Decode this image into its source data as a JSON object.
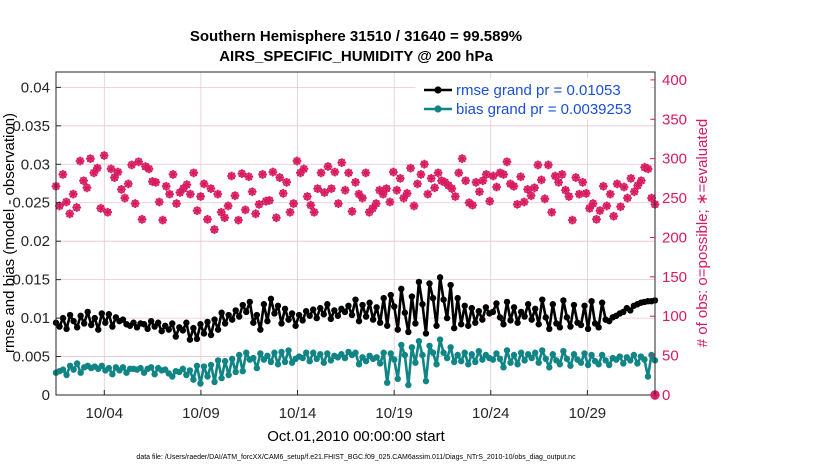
{
  "chart_data": {
    "type": "line",
    "title": "Southern Hemisphere 31510 / 31640 = 99.589%",
    "subtitle": "AIRS_SPECIFIC_HUMIDITY @ 200 hPa",
    "xlabel": "Oct.01,2010 00:00:00 start",
    "ylabel": "rmse and bias (model - observation)",
    "y2label": "# of obs: o=possible; ∗=evaluated",
    "x_start_day": 1.5,
    "x_end_day": 32.5,
    "xlim": [
      1.5,
      32.5
    ],
    "ylim": [
      0,
      0.042
    ],
    "y2lim": [
      0,
      410
    ],
    "x_tick_days": [
      4,
      9,
      14,
      19,
      24,
      29
    ],
    "x_tick_labels": [
      "10/04",
      "10/09",
      "10/14",
      "10/19",
      "10/24",
      "10/29"
    ],
    "y_ticks": [
      "0",
      "0.005",
      "0.01",
      "0.015",
      "0.02",
      "0.025",
      "0.03",
      "0.035",
      "0.04"
    ],
    "y2_ticks": [
      "0",
      "50",
      "100",
      "150",
      "200",
      "250",
      "300",
      "350",
      "400"
    ],
    "grid": true,
    "legend_position": "top-right",
    "series": [
      {
        "name": "rmse grand pr = 0.01053",
        "axis": "left",
        "color": "#000000",
        "values": [
          0.0094,
          0.0089,
          0.01,
          0.0086,
          0.0104,
          0.0096,
          0.0088,
          0.0103,
          0.0093,
          0.0108,
          0.0091,
          0.01,
          0.0085,
          0.0106,
          0.0094,
          0.0105,
          0.0089,
          0.0101,
          0.0096,
          0.0098,
          0.0092,
          0.009,
          0.0094,
          0.0088,
          0.0093,
          0.0092,
          0.0086,
          0.0096,
          0.0089,
          0.0094,
          0.0083,
          0.009,
          0.0085,
          0.0093,
          0.0076,
          0.0088,
          0.0084,
          0.0094,
          0.0072,
          0.0087,
          0.0073,
          0.0092,
          0.008,
          0.0095,
          0.0078,
          0.0098,
          0.0085,
          0.0107,
          0.0093,
          0.0104,
          0.0098,
          0.011,
          0.0102,
          0.0117,
          0.0108,
          0.0121,
          0.0094,
          0.0104,
          0.0085,
          0.0118,
          0.0096,
          0.0125,
          0.0106,
          0.0116,
          0.0093,
          0.0112,
          0.0098,
          0.0106,
          0.009,
          0.0104,
          0.0097,
          0.0109,
          0.0103,
          0.0111,
          0.01,
          0.0113,
          0.0105,
          0.0118,
          0.0099,
          0.011,
          0.0103,
          0.0112,
          0.0108,
          0.0116,
          0.0104,
          0.0124,
          0.0096,
          0.0117,
          0.0102,
          0.012,
          0.0098,
          0.0114,
          0.0094,
          0.0126,
          0.009,
          0.013,
          0.0115,
          0.0085,
          0.0138,
          0.0107,
          0.0082,
          0.0128,
          0.0093,
          0.0147,
          0.0118,
          0.008,
          0.0145,
          0.0126,
          0.009,
          0.0153,
          0.0124,
          0.01,
          0.0143,
          0.0087,
          0.0126,
          0.0092,
          0.0116,
          0.009,
          0.0113,
          0.0094,
          0.0109,
          0.0098,
          0.0114,
          0.0106,
          0.0108,
          0.0119,
          0.0101,
          0.0092,
          0.0121,
          0.0097,
          0.0114,
          0.0094,
          0.0108,
          0.0102,
          0.0118,
          0.0098,
          0.0112,
          0.0092,
          0.0124,
          0.0101,
          0.0086,
          0.0118,
          0.0093,
          0.0088,
          0.0123,
          0.0101,
          0.0089,
          0.0117,
          0.0094,
          0.0091,
          0.0116,
          0.0086,
          0.0122,
          0.0093,
          0.0088,
          0.012,
          0.0098,
          0.0096,
          0.0101,
          0.0103,
          0.0106,
          0.0108,
          0.0113,
          0.011,
          0.0116,
          0.0118,
          0.012,
          0.0121,
          0.0122,
          0.0122,
          0.0123
        ]
      },
      {
        "name": "bias grand pr = 0.0039253",
        "axis": "left",
        "color": "#108585",
        "values": [
          0.0029,
          0.0031,
          0.0033,
          0.0026,
          0.0038,
          0.0033,
          0.0041,
          0.0029,
          0.0036,
          0.0038,
          0.0035,
          0.0037,
          0.0034,
          0.0038,
          0.0032,
          0.0035,
          0.0027,
          0.0036,
          0.0032,
          0.0036,
          0.0029,
          0.0034,
          0.0034,
          0.0033,
          0.0035,
          0.0029,
          0.0034,
          0.0036,
          0.0027,
          0.0035,
          0.0032,
          0.0033,
          0.0028,
          0.0024,
          0.0031,
          0.003,
          0.0034,
          0.0026,
          0.0032,
          0.002,
          0.0038,
          0.0015,
          0.0037,
          0.0024,
          0.0039,
          0.0017,
          0.0045,
          0.0022,
          0.0044,
          0.0026,
          0.0047,
          0.003,
          0.0052,
          0.0031,
          0.0055,
          0.0046,
          0.0048,
          0.0035,
          0.0054,
          0.0046,
          0.0051,
          0.0043,
          0.0055,
          0.004,
          0.0056,
          0.0043,
          0.0058,
          0.0042,
          0.0047,
          0.005,
          0.0048,
          0.0055,
          0.0044,
          0.0055,
          0.0047,
          0.0053,
          0.0042,
          0.0054,
          0.0045,
          0.0051,
          0.0049,
          0.0053,
          0.0048,
          0.0056,
          0.0052,
          0.0055,
          0.004,
          0.0049,
          0.0044,
          0.0051,
          0.0047,
          0.0049,
          0.0041,
          0.0055,
          0.0016,
          0.0054,
          0.0046,
          0.0021,
          0.0065,
          0.0052,
          0.0013,
          0.0062,
          0.0042,
          0.007,
          0.0052,
          0.0018,
          0.0064,
          0.0055,
          0.004,
          0.0072,
          0.0055,
          0.0048,
          0.0062,
          0.0043,
          0.0052,
          0.0044,
          0.0055,
          0.004,
          0.0053,
          0.0043,
          0.0057,
          0.0046,
          0.0052,
          0.0048,
          0.0046,
          0.0054,
          0.0047,
          0.0036,
          0.0058,
          0.0042,
          0.0052,
          0.004,
          0.0055,
          0.0045,
          0.0053,
          0.0048,
          0.0055,
          0.0042,
          0.0058,
          0.0047,
          0.0036,
          0.0053,
          0.0045,
          0.004,
          0.0057,
          0.0047,
          0.0038,
          0.0053,
          0.0046,
          0.0042,
          0.0054,
          0.0039,
          0.0052,
          0.0044,
          0.004,
          0.0052,
          0.0045,
          0.0039,
          0.0048,
          0.0046,
          0.005,
          0.0041,
          0.0049,
          0.0045,
          0.0052,
          0.0041,
          0.005,
          0.0046,
          0.0024,
          0.0052,
          0.0045
        ]
      },
      {
        "name": "possible",
        "axis": "right",
        "color": "#d81b60",
        "values": [
          265,
          240,
          280,
          245,
          230,
          255,
          238,
          297,
          272,
          263,
          300,
          282,
          288,
          237,
          304,
          232,
          287,
          276,
          283,
          261,
          250,
          268,
          292,
          243,
          296,
          223,
          290,
          287,
          271,
          270,
          245,
          222,
          265,
          255,
          280,
          243,
          257,
          262,
          267,
          255,
          282,
          234,
          252,
          268,
          223,
          262,
          210,
          255,
          232,
          225,
          240,
          278,
          253,
          222,
          281,
          235,
          277,
          258,
          230,
          242,
          280,
          246,
          247,
          283,
          225,
          276,
          256,
          270,
          232,
          243,
          297,
          282,
          287,
          252,
          241,
          232,
          262,
          282,
          257,
          290,
          262,
          283,
          243,
          295,
          260,
          282,
          233,
          270,
          255,
          250,
          282,
          232,
          237,
          243,
          260,
          255,
          262,
          245,
          283,
          260,
          275,
          250,
          256,
          288,
          240,
          268,
          280,
          293,
          255,
          275,
          263,
          282,
          272,
          270,
          266,
          262,
          252,
          282,
          300,
          272,
          244,
          241,
          270,
          258,
          272,
          280,
          246,
          278,
          264,
          282,
          280,
          296,
          268,
          265,
          242,
          277,
          245,
          261,
          253,
          263,
          292,
          273,
          249,
          292,
          232,
          278,
          270,
          280,
          260,
          252,
          222,
          276,
          255,
          270,
          256,
          237,
          243,
          223,
          234,
          265,
          240,
          255,
          227,
          268,
          239,
          264,
          250,
          275,
          258,
          266,
          272,
          289,
          287,
          250,
          242
        ]
      }
    ],
    "footer": "data file: /Users/raeder/DAI/ATM_forcXX/CAM6_setup/f.e21.FHIST_BGC.f09_025.CAM6assim.011/Diags_NTrS_2010-10/obs_diag_output.nc"
  }
}
